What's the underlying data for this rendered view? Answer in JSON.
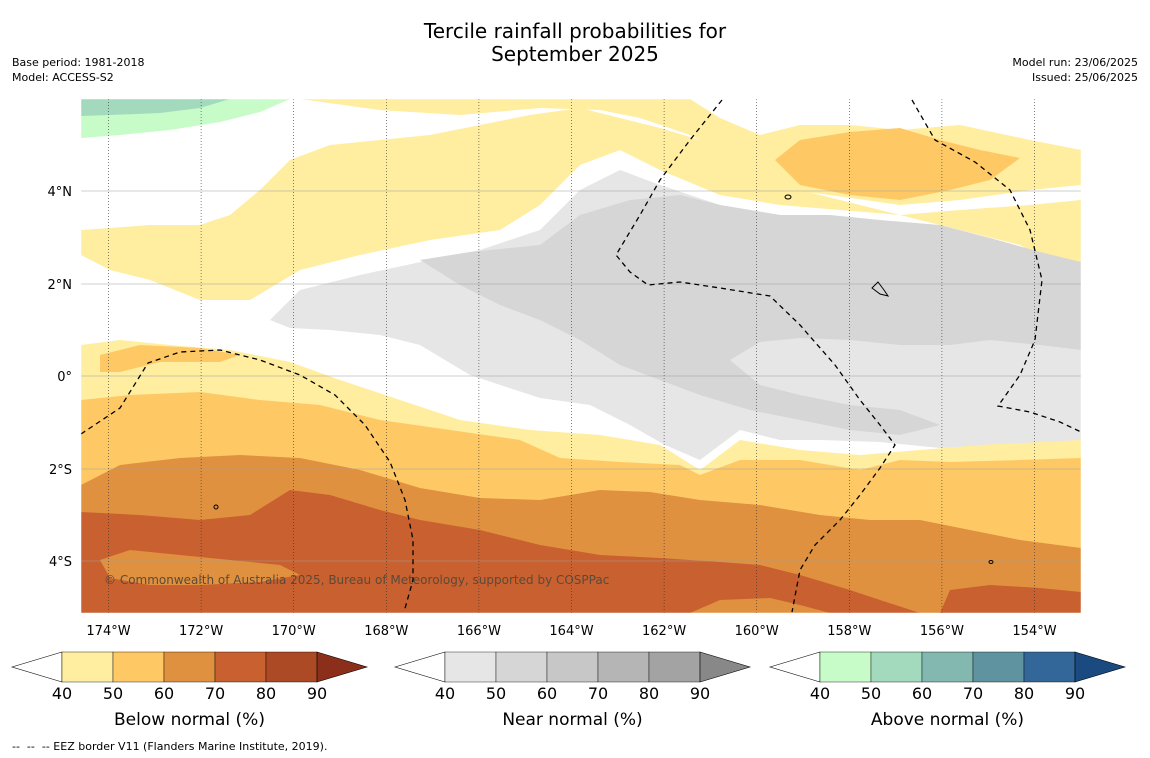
{
  "title": {
    "line1": "Tercile rainfall probabilities for",
    "line2": "September 2025"
  },
  "meta_left": {
    "base_period": "Base period: 1981-2018",
    "model": "Model: ACCESS-S2"
  },
  "meta_right": {
    "model_run": "Model run: 23/06/2025",
    "issued": "Issued: 25/06/2025"
  },
  "map": {
    "lat_labels": [
      "4°N",
      "2°N",
      "0°",
      "2°S",
      "4°S"
    ],
    "lon_labels": [
      "174°W",
      "172°W",
      "170°W",
      "168°W",
      "166°W",
      "164°W",
      "162°W",
      "160°W",
      "158°W",
      "156°W",
      "154°W"
    ],
    "copyright": "© Commonwealth of Australia 2025, Bureau of Meteorology, supported by COSPPac"
  },
  "colorbars": [
    {
      "title": "Below normal (%)",
      "ticks": [
        "40",
        "50",
        "60",
        "70",
        "80",
        "90"
      ],
      "colors": [
        "#ffffff",
        "#ffeda0",
        "#fec965",
        "#e0913f",
        "#c9602f",
        "#ad4a26",
        "#8c2f1a"
      ]
    },
    {
      "title": "Near normal (%)",
      "ticks": [
        "40",
        "50",
        "60",
        "70",
        "80",
        "90"
      ],
      "colors": [
        "#ffffff",
        "#e6e6e6",
        "#d6d6d6",
        "#c7c7c7",
        "#b5b5b5",
        "#a3a3a3",
        "#888888"
      ]
    },
    {
      "title": "Above normal (%)",
      "ticks": [
        "40",
        "50",
        "60",
        "70",
        "80",
        "90"
      ],
      "colors": [
        "#ffffff",
        "#c7fcc8",
        "#a3d9bd",
        "#82b8b0",
        "#5e939f",
        "#336699",
        "#1a4a80"
      ]
    }
  ],
  "footnote": "--  --  -- EEZ border V11 (Flanders Marine Institute, 2019)."
}
